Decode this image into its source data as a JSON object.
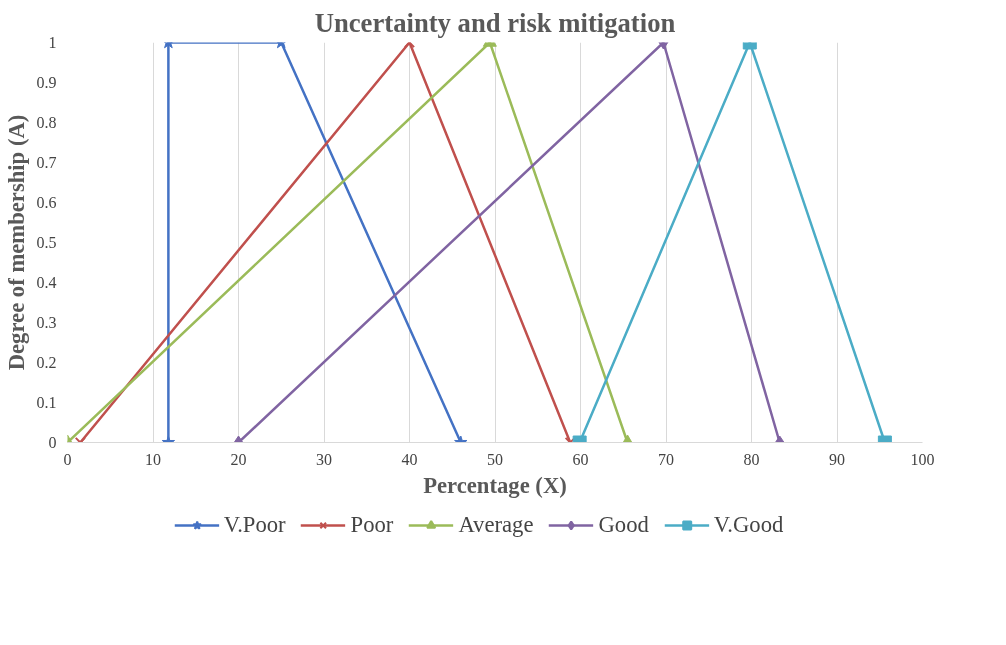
{
  "chart_data": {
    "type": "line",
    "title": "Uncertainty and risk mitigation",
    "xlabel": "Percentage (X)",
    "ylabel": "Degree of membership (A)",
    "xlim": [
      0,
      100
    ],
    "xticks": [
      0,
      10,
      20,
      30,
      40,
      50,
      60,
      70,
      80,
      90,
      100
    ],
    "ylim": [
      0,
      1
    ],
    "yticks": [
      0,
      0.1,
      0.2,
      0.3,
      0.4,
      0.5,
      0.6,
      0.7,
      0.8,
      0.9,
      1
    ],
    "grid": "x",
    "legend": "bottom",
    "line_style": "solid",
    "series": [
      {
        "name": "V.Poor",
        "color": "#4472c4",
        "marker": "star",
        "x": [
          11.8,
          11.8,
          25,
          46
        ],
        "values": [
          0,
          1,
          1,
          0
        ]
      },
      {
        "name": "Poor",
        "color": "#c0504d",
        "marker": "cross",
        "x": [
          1.5,
          40,
          58.8
        ],
        "values": [
          0,
          1,
          0
        ]
      },
      {
        "name": "Average",
        "color": "#9bbb59",
        "marker": "triangle",
        "x": [
          0,
          49.4,
          65.5
        ],
        "values": [
          0,
          1,
          0
        ]
      },
      {
        "name": "Good",
        "color": "#8064a2",
        "marker": "diamond",
        "x": [
          20,
          69.7,
          83.3
        ],
        "values": [
          0,
          1,
          0
        ]
      },
      {
        "name": "V.Good",
        "color": "#4bacc6",
        "marker": "square",
        "x": [
          59.9,
          79.8,
          95.6
        ],
        "values": [
          0,
          1,
          0
        ]
      }
    ]
  }
}
